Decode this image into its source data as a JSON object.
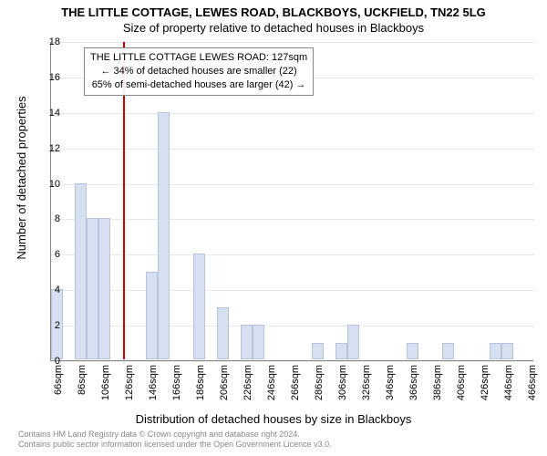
{
  "title": "THE LITTLE COTTAGE, LEWES ROAD, BLACKBOYS, UCKFIELD, TN22 5LG",
  "subtitle": "Size of property relative to detached houses in Blackboys",
  "chart": {
    "type": "histogram",
    "ylabel": "Number of detached properties",
    "xlabel": "Distribution of detached houses by size in Blackboys",
    "ylim": [
      0,
      18
    ],
    "ytick_step": 2,
    "xtick_start": 66,
    "xtick_step": 20,
    "xtick_count": 21,
    "xtick_suffix": "sqm",
    "bar_color": "#d6e0f0",
    "bar_border": "#b6c3db",
    "grid_color": "#e8e8e8",
    "background_color": "#ffffff",
    "refline_value": 127,
    "refline_color": "#cc0000",
    "annotation": {
      "line1": "THE LITTLE COTTAGE LEWES ROAD: 127sqm",
      "line2": "← 34% of detached houses are smaller (22)",
      "line3": "65% of semi-detached houses are larger (42) →"
    },
    "bars": [
      {
        "x": 66,
        "v": 4
      },
      {
        "x": 86,
        "v": 10
      },
      {
        "x": 96,
        "v": 8
      },
      {
        "x": 106,
        "v": 8
      },
      {
        "x": 126,
        "v": 0
      },
      {
        "x": 146,
        "v": 5
      },
      {
        "x": 156,
        "v": 14
      },
      {
        "x": 166,
        "v": 0
      },
      {
        "x": 186,
        "v": 6
      },
      {
        "x": 196,
        "v": 0
      },
      {
        "x": 206,
        "v": 3
      },
      {
        "x": 216,
        "v": 0
      },
      {
        "x": 226,
        "v": 2
      },
      {
        "x": 236,
        "v": 2
      },
      {
        "x": 286,
        "v": 1
      },
      {
        "x": 306,
        "v": 1
      },
      {
        "x": 316,
        "v": 2
      },
      {
        "x": 366,
        "v": 1
      },
      {
        "x": 396,
        "v": 1
      },
      {
        "x": 436,
        "v": 1
      },
      {
        "x": 446,
        "v": 1
      }
    ]
  },
  "footer": {
    "line1": "Contains HM Land Registry data © Crown copyright and database right 2024.",
    "line2": "Contains public sector information licensed under the Open Government Licence v3.0."
  }
}
